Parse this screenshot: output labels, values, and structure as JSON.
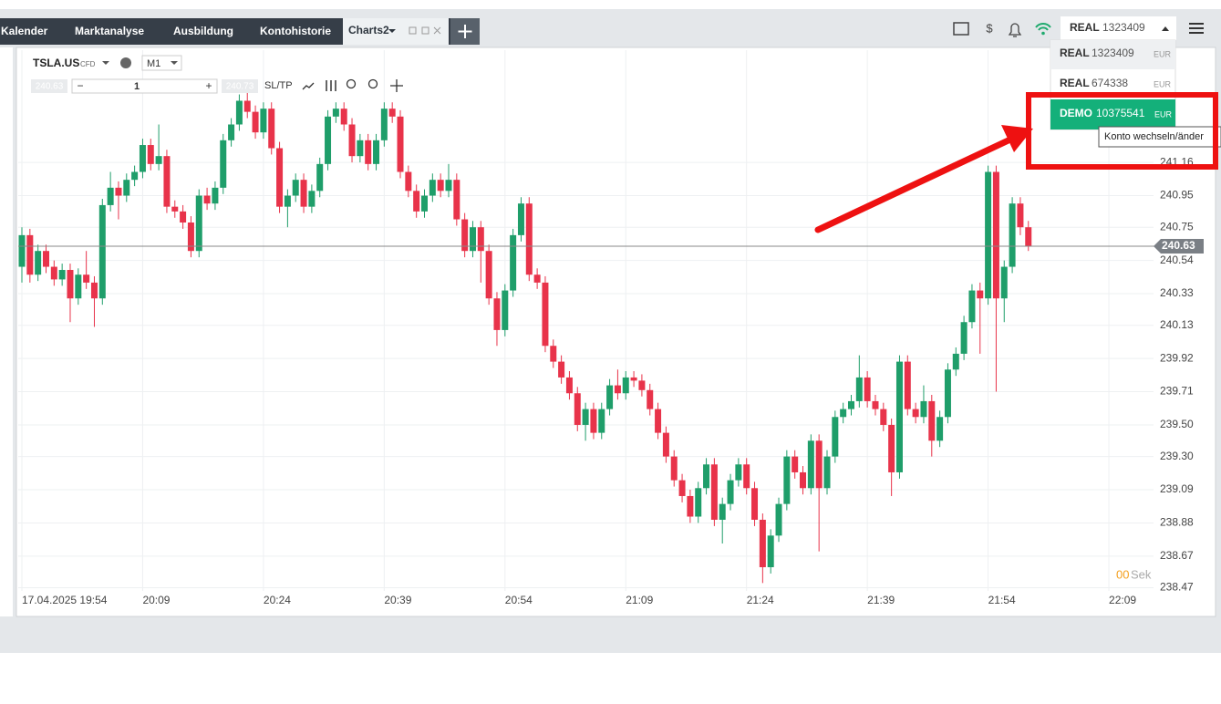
{
  "tabs": [
    "Kalender",
    "Marktanalyse",
    "Ausbildung",
    "Kontohistorie",
    "Charts2"
  ],
  "account": {
    "type": "REAL",
    "number": "1323409"
  },
  "accounts": [
    {
      "type": "REAL",
      "number": "1323409",
      "currency": "EUR"
    },
    {
      "type": "REAL",
      "number": "674338",
      "currency": "EUR"
    },
    {
      "type": "DEMO",
      "number": "10375541",
      "currency": "EUR"
    }
  ],
  "tooltip": "Konto wechseln/änder",
  "chart": {
    "type": "candlestick",
    "symbol": "TSLA.US",
    "instrument": "CFD",
    "timeframe": "M1",
    "bid": "240.63",
    "ask": "240.73",
    "volume": "1",
    "sltp": "SL/TP",
    "timer": "00",
    "timer_unit": "Sek",
    "up_color": "#1f9e6a",
    "down_color": "#e8334a",
    "grid": true,
    "current_price": 240.63,
    "ylim": [
      238.45,
      241.87
    ],
    "yticks": [
      241.16,
      240.95,
      240.75,
      240.54,
      240.33,
      240.13,
      239.92,
      239.71,
      {
        "value": 239.5,
        "label": "239.50"
      },
      {
        "value": 239.3,
        "label": "239.30"
      },
      239.09,
      238.88,
      238.67,
      238.47
    ],
    "xticks": [
      "17.04.2025 19:54",
      "20:09",
      "20:24",
      "20:39",
      "20:54",
      "21:09",
      "21:24",
      "21:39",
      "21:54",
      "22:09"
    ],
    "candles": [
      [
        240.5,
        240.75,
        240.4,
        240.7
      ],
      [
        240.7,
        240.74,
        240.4,
        240.45
      ],
      [
        240.45,
        240.64,
        240.41,
        240.6
      ],
      [
        240.6,
        240.64,
        240.46,
        240.5
      ],
      [
        240.5,
        240.54,
        240.38,
        240.42
      ],
      [
        240.42,
        240.52,
        240.38,
        240.48
      ],
      [
        240.48,
        240.52,
        240.15,
        240.3
      ],
      [
        240.3,
        240.49,
        240.26,
        240.45
      ],
      [
        240.45,
        240.6,
        240.36,
        240.4
      ],
      [
        240.4,
        240.44,
        240.12,
        240.3
      ],
      [
        240.3,
        240.93,
        240.26,
        240.89
      ],
      [
        240.89,
        241.1,
        240.85,
        241.0
      ],
      [
        241.0,
        241.04,
        240.8,
        240.95
      ],
      [
        240.95,
        241.09,
        240.91,
        241.05
      ],
      [
        241.05,
        241.14,
        241.01,
        241.1
      ],
      [
        241.1,
        241.31,
        241.06,
        241.27
      ],
      [
        241.27,
        241.31,
        241.11,
        241.15
      ],
      [
        241.15,
        241.4,
        241.11,
        241.2
      ],
      [
        241.2,
        241.24,
        240.84,
        240.88
      ],
      [
        240.88,
        240.92,
        240.81,
        240.85
      ],
      [
        240.85,
        240.89,
        240.74,
        240.78
      ],
      [
        240.78,
        240.82,
        240.56,
        240.6
      ],
      [
        240.6,
        240.99,
        240.56,
        240.95
      ],
      [
        240.95,
        241.0,
        240.86,
        240.9
      ],
      [
        240.9,
        241.04,
        240.86,
        241.0
      ],
      [
        241.0,
        241.34,
        240.96,
        241.3
      ],
      [
        241.3,
        241.44,
        241.26,
        241.4
      ],
      [
        241.4,
        241.59,
        241.36,
        241.55
      ],
      [
        241.55,
        241.6,
        241.44,
        241.48
      ],
      [
        241.48,
        241.52,
        241.31,
        241.35
      ],
      [
        241.35,
        241.54,
        241.31,
        241.5
      ],
      [
        241.5,
        241.54,
        241.21,
        241.25
      ],
      [
        241.25,
        241.29,
        240.84,
        240.88
      ],
      [
        240.88,
        240.99,
        240.75,
        240.95
      ],
      [
        240.95,
        241.09,
        240.91,
        241.05
      ],
      [
        241.05,
        241.09,
        240.84,
        240.88
      ],
      [
        240.88,
        241.02,
        240.84,
        240.98
      ],
      [
        240.98,
        241.19,
        240.94,
        241.15
      ],
      [
        241.15,
        241.49,
        241.11,
        241.45
      ],
      [
        241.45,
        241.54,
        241.41,
        241.5
      ],
      [
        241.5,
        241.54,
        241.36,
        241.4
      ],
      [
        241.4,
        241.44,
        241.16,
        241.2
      ],
      [
        241.2,
        241.34,
        241.16,
        241.3
      ],
      [
        241.3,
        241.34,
        241.11,
        241.15
      ],
      [
        241.15,
        241.34,
        241.11,
        241.3
      ],
      [
        241.3,
        241.54,
        241.26,
        241.5
      ],
      [
        241.5,
        241.54,
        241.41,
        241.45
      ],
      [
        241.45,
        241.49,
        241.06,
        241.1
      ],
      [
        241.1,
        241.14,
        240.94,
        240.98
      ],
      [
        240.98,
        241.02,
        240.81,
        240.85
      ],
      [
        240.85,
        240.99,
        240.81,
        240.95
      ],
      [
        240.95,
        241.09,
        240.91,
        241.05
      ],
      [
        241.05,
        241.09,
        240.94,
        240.98
      ],
      [
        240.98,
        241.15,
        240.94,
        241.05
      ],
      [
        241.05,
        241.09,
        240.76,
        240.8
      ],
      [
        240.8,
        240.84,
        240.56,
        240.6
      ],
      [
        240.6,
        240.79,
        240.56,
        240.75
      ],
      [
        240.75,
        240.79,
        240.4,
        240.6
      ],
      [
        240.6,
        240.64,
        240.26,
        240.3
      ],
      [
        240.3,
        240.34,
        240.0,
        240.1
      ],
      [
        240.1,
        240.39,
        240.06,
        240.35
      ],
      [
        240.35,
        240.74,
        240.31,
        240.7
      ],
      [
        240.7,
        240.94,
        240.66,
        240.9
      ],
      [
        240.9,
        240.94,
        240.41,
        240.45
      ],
      [
        240.45,
        240.49,
        240.36,
        240.4
      ],
      [
        240.4,
        240.44,
        239.96,
        240.0
      ],
      [
        240.0,
        240.04,
        239.86,
        239.9
      ],
      [
        239.9,
        239.94,
        239.76,
        239.8
      ],
      [
        239.8,
        239.84,
        239.66,
        239.7
      ],
      [
        239.7,
        239.74,
        239.46,
        239.5
      ],
      [
        239.5,
        239.64,
        239.4,
        239.6
      ],
      [
        239.6,
        239.64,
        239.41,
        239.45
      ],
      [
        239.45,
        239.64,
        239.41,
        239.6
      ],
      [
        239.6,
        239.79,
        239.56,
        239.75
      ],
      [
        239.75,
        239.85,
        239.66,
        239.7
      ],
      [
        239.7,
        239.84,
        239.66,
        239.8
      ],
      [
        239.8,
        239.84,
        239.74,
        239.78
      ],
      [
        239.78,
        239.82,
        239.68,
        239.72
      ],
      [
        239.72,
        239.76,
        239.56,
        239.6
      ],
      [
        239.6,
        239.64,
        239.41,
        239.45
      ],
      [
        239.45,
        239.49,
        239.26,
        239.3
      ],
      [
        239.3,
        239.34,
        239.11,
        239.15
      ],
      [
        239.15,
        239.19,
        239.01,
        239.05
      ],
      [
        239.05,
        239.09,
        238.88,
        238.92
      ],
      [
        238.92,
        239.14,
        238.88,
        239.1
      ],
      [
        239.1,
        239.29,
        239.06,
        239.25
      ],
      [
        239.25,
        239.29,
        238.86,
        238.9
      ],
      [
        238.9,
        239.04,
        238.75,
        239.0
      ],
      [
        239.0,
        239.19,
        238.96,
        239.15
      ],
      [
        239.15,
        239.29,
        239.11,
        239.25
      ],
      [
        239.25,
        239.29,
        239.06,
        239.1
      ],
      [
        239.1,
        239.14,
        238.86,
        238.9
      ],
      [
        238.9,
        238.94,
        238.5,
        238.6
      ],
      [
        238.6,
        238.84,
        238.56,
        238.8
      ],
      [
        238.8,
        239.04,
        238.76,
        239.0
      ],
      [
        239.0,
        239.34,
        238.96,
        239.3
      ],
      [
        239.3,
        239.34,
        239.16,
        239.2
      ],
      [
        239.2,
        239.24,
        239.06,
        239.1
      ],
      [
        239.1,
        239.44,
        239.06,
        239.4
      ],
      [
        239.4,
        239.44,
        238.7,
        239.1
      ],
      [
        239.1,
        239.34,
        239.06,
        239.3
      ],
      [
        239.3,
        239.59,
        239.26,
        239.55
      ],
      [
        239.55,
        239.64,
        239.51,
        239.6
      ],
      [
        239.6,
        239.69,
        239.56,
        239.65
      ],
      [
        239.65,
        239.94,
        239.61,
        239.8
      ],
      [
        239.8,
        239.84,
        239.61,
        239.65
      ],
      [
        239.65,
        239.69,
        239.56,
        239.6
      ],
      [
        239.6,
        239.64,
        239.46,
        239.5
      ],
      [
        239.5,
        239.54,
        239.05,
        239.2
      ],
      [
        239.2,
        239.94,
        239.16,
        239.9
      ],
      [
        239.9,
        239.94,
        239.56,
        239.6
      ],
      [
        239.6,
        239.64,
        239.51,
        239.55
      ],
      [
        239.55,
        239.75,
        239.51,
        239.65
      ],
      [
        239.65,
        239.69,
        239.3,
        239.4
      ],
      [
        239.4,
        239.59,
        239.36,
        239.55
      ],
      [
        239.55,
        239.89,
        239.51,
        239.85
      ],
      [
        239.85,
        239.99,
        239.81,
        239.95
      ],
      [
        239.95,
        240.19,
        239.91,
        240.15
      ],
      [
        240.15,
        240.39,
        240.11,
        240.35
      ],
      [
        240.35,
        240.4,
        239.95,
        240.3
      ],
      [
        240.3,
        241.14,
        240.26,
        241.1
      ],
      [
        241.1,
        241.14,
        239.71,
        240.3
      ],
      [
        240.3,
        240.54,
        240.15,
        240.5
      ],
      [
        240.5,
        240.94,
        240.46,
        240.9
      ],
      [
        240.9,
        240.94,
        240.7,
        240.75
      ],
      [
        240.75,
        240.79,
        240.6,
        240.63
      ]
    ]
  }
}
